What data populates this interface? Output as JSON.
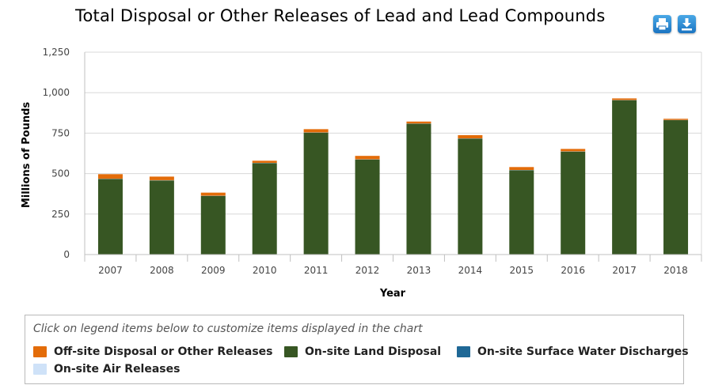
{
  "toolbar": {
    "print_icon": "printer-icon",
    "download_icon": "download-icon"
  },
  "chart_data": {
    "type": "bar",
    "stacked": true,
    "title": "Total Disposal or Other Releases of Lead and Lead Compounds",
    "xlabel": "Year",
    "ylabel": "Millions of Pounds",
    "ylim": [
      0,
      1250
    ],
    "yticks": [
      0,
      250,
      500,
      750,
      1000,
      1250
    ],
    "ytick_labels": [
      "0",
      "250",
      "500",
      "750",
      "1,000",
      "1,250"
    ],
    "grid": true,
    "categories": [
      "2007",
      "2008",
      "2009",
      "2010",
      "2011",
      "2012",
      "2013",
      "2014",
      "2015",
      "2016",
      "2017",
      "2018"
    ],
    "series": [
      {
        "name": "On-site Land Disposal",
        "color": "#375623",
        "values": [
          467,
          458,
          362,
          565,
          753,
          587,
          808,
          716,
          521,
          636,
          953,
          830
        ]
      },
      {
        "name": "On-site Air Releases",
        "color": "#cfe2f8",
        "values": [
          1,
          1,
          1,
          1,
          1,
          1,
          1,
          1,
          1,
          1,
          1,
          1
        ]
      },
      {
        "name": "On-site Surface Water Discharges",
        "color": "#1f6896",
        "values": [
          0.5,
          0.5,
          0.5,
          0.5,
          0.5,
          0.5,
          0.5,
          0.5,
          0.5,
          0.5,
          0.5,
          0.5
        ]
      },
      {
        "name": "Off-site Disposal or Other Releases",
        "color": "#e36c09",
        "values": [
          28,
          22,
          19,
          13,
          20,
          21,
          12,
          20,
          18,
          15,
          10,
          7
        ]
      }
    ]
  },
  "legend": {
    "hint": "Click on legend items below to customize items displayed in the chart",
    "items": [
      {
        "label": "Off-site Disposal or Other Releases",
        "color": "#e36c09"
      },
      {
        "label": "On-site Land Disposal",
        "color": "#375623"
      },
      {
        "label": "On-site Surface Water Discharges",
        "color": "#1f6896"
      },
      {
        "label": "On-site Air Releases",
        "color": "#cfe2f8"
      }
    ]
  }
}
